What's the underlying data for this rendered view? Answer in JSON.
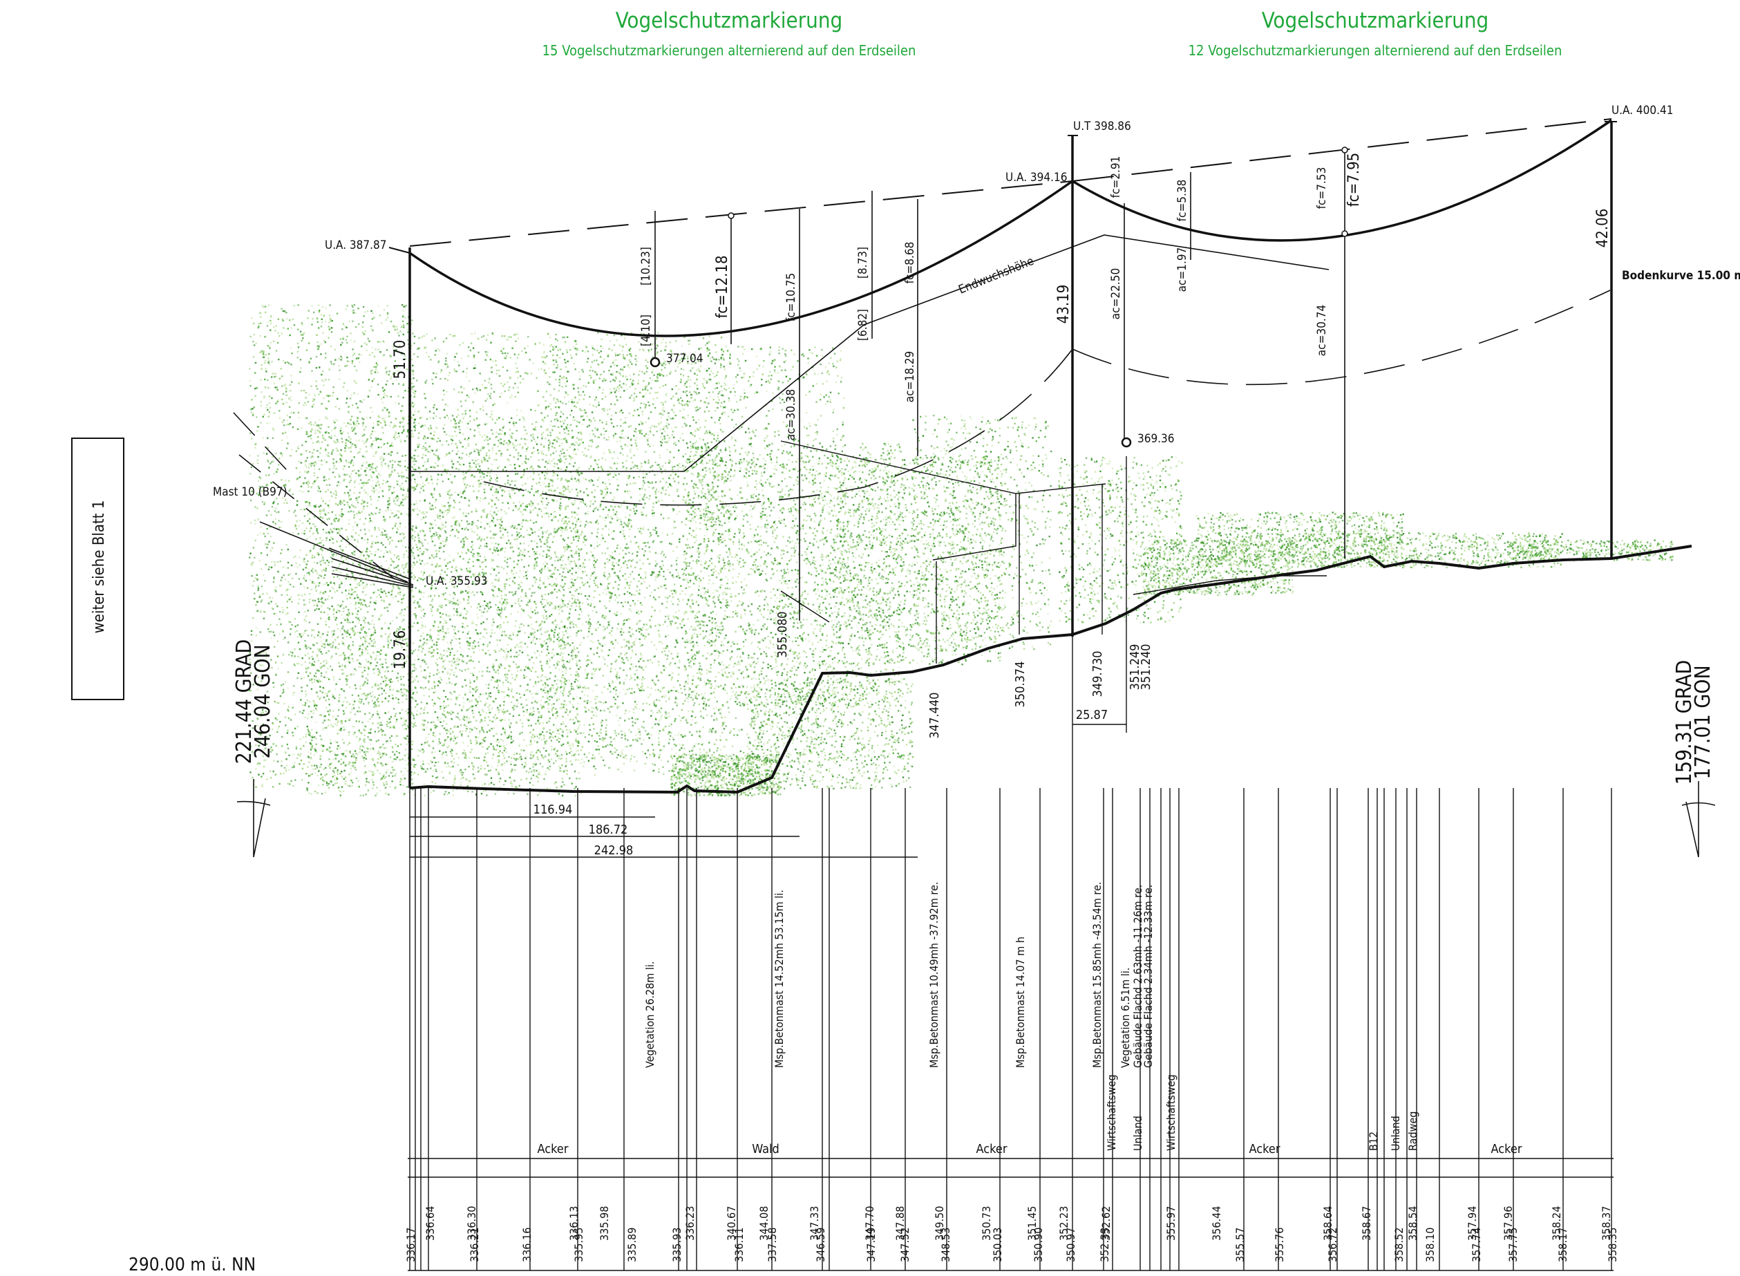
{
  "markings": [
    {
      "title": "Vogelschutzmarkierung",
      "subtitle": "15 Vogelschutzmarkierungen alternierend auf den Erdseilen"
    },
    {
      "title": "Vogelschutzmarkierung",
      "subtitle": "12 Vogelschutzmarkierungen alternierend auf den Erdseilen"
    }
  ],
  "side_note": "weiter siehe Blatt 1",
  "mast_label": "Mast 10 (B97)",
  "left_angle": {
    "grad": "221.44 GRAD",
    "gon": "246.04 GON"
  },
  "right_angle": {
    "grad": "159.31 GRAD",
    "gon": "177.01 GON"
  },
  "heights": {
    "ua1": "U.A. 387.87",
    "ua_low": "U.A. 355.93",
    "ut": "U.T 398.86",
    "ua2": "U.A. 394.16",
    "ua3": "U.A. 400.41"
  },
  "mast_heights": {
    "m1_top": "51.70",
    "m1_low": "19.76",
    "m2": "43.19",
    "m3": "42.06"
  },
  "sag": {
    "fc1218": "fc=12.18",
    "fc1075": "fc=10.75",
    "fc868": "fc=8.68",
    "fc291": "fc=2.91",
    "fc538": "fc=5.38",
    "fc753": "fc=7.53",
    "fc795": "fc=7.95"
  },
  "bracket": {
    "b1023": "[10.23]",
    "b410": "[4.10]",
    "b873": "[8.73]",
    "b682": "[6.82]"
  },
  "ac": {
    "ac3038": "ac=30.38",
    "ac1829": "ac=18.29",
    "ac2250": "ac=22.50",
    "ac197": "ac=1.97",
    "ac3074": "ac=30.74"
  },
  "points": {
    "p37704": "377.04",
    "p36936": "369.36"
  },
  "endwuchs": "Endwuchshöhe",
  "bodenkurve": "Bodenkurve 15.00 m (",
  "dims": {
    "d11694": "116.94",
    "d18672": "186.72",
    "d24298": "242.98",
    "d2587": "25.87"
  },
  "obj_heights": {
    "h355080": "355.080",
    "h347440": "347.440",
    "h350374": "350.374",
    "h349730": "349.730",
    "h351249": "351.249",
    "h351240": "351.240"
  },
  "annotations": [
    "Vegetation 26.28m li.",
    "Msp.Betonmast 14.52mh 53.15m li.",
    "Msp.Betonmast 10.49mh -37.92m re.",
    "Msp.Betonmast 14.07 m h",
    "Msp.Betonmast 15.85mh -43.54m re.",
    "Vegetation 6.51m li.",
    "Gebäude Flachd 2.63mh -11.26m re.",
    "Gebäude Flachd 2.34mh -12.33m re.",
    "Wirtschaftsweg",
    "Unland",
    "Wirtschaftsweg",
    "B12",
    "Unland",
    "Radweg"
  ],
  "landuse": [
    "Acker",
    "Wald",
    "Acker",
    "Acker",
    "Acker"
  ],
  "ground_row_1": [
    "336.64",
    "336.30",
    "336.13",
    "335.98",
    "336.23",
    "340.67",
    "344.08",
    "347.33",
    "347.70",
    "347.88",
    "349.50",
    "350.73",
    "351.45",
    "352.23",
    "352.62",
    "355.97",
    "356.44",
    "358.64",
    "358.67",
    "358.54",
    "357.94",
    "357.96",
    "358.24",
    "358.37"
  ],
  "ground_row_2": [
    "336.17",
    "336.21",
    "336.16",
    "335.95",
    "335.89",
    "335.93",
    "336.11",
    "337.58",
    "346.59",
    "347.19",
    "347.52",
    "348.53",
    "350.03",
    "350.90",
    "350.97",
    "352.33",
    "355.57",
    "355.76",
    "356.72",
    "358.52",
    "358.10",
    "357.74",
    "357.75",
    "358.17",
    "358.35"
  ],
  "datum": "290.00 m ü. NN"
}
